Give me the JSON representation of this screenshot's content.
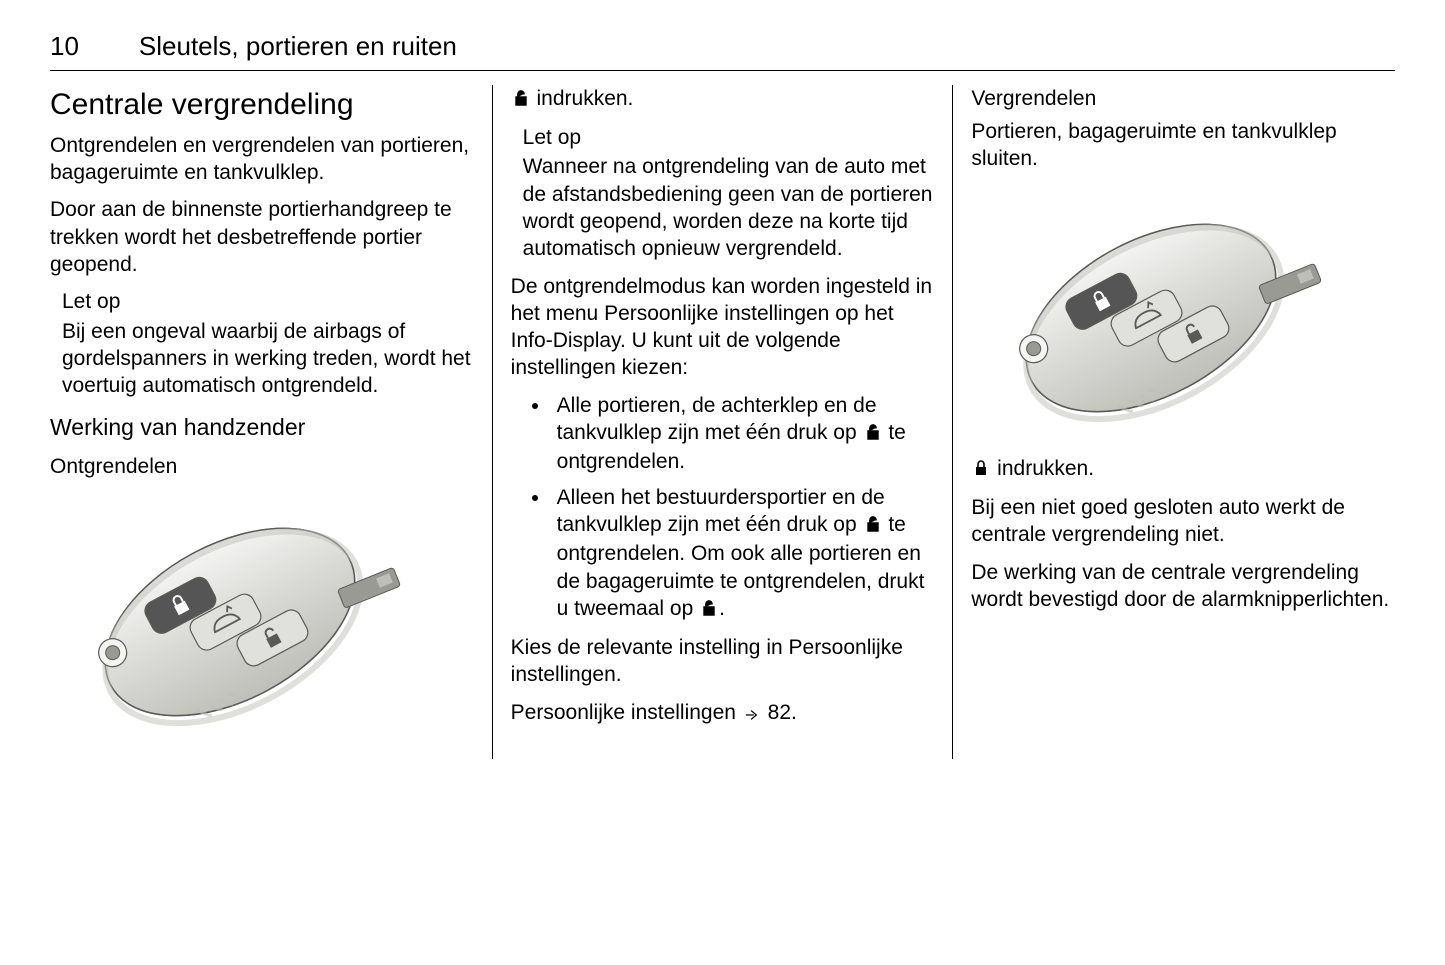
{
  "header": {
    "page_number": "10",
    "chapter_title": "Sleutels, portieren en ruiten"
  },
  "col1": {
    "section_title": "Centrale vergrendeling",
    "p1": "Ontgrendelen en vergrendelen van portieren, bagageruimte en tankvulklep.",
    "p2": "Door aan de binnenste portierhandgreep te trekken wordt het desbetreffende portier geopend.",
    "note1_head": "Let op",
    "note1_body": "Bij een ongeval waarbij de airbags of gordelspanners in werking treden, wordt het voertuig automatisch ontgrendeld.",
    "sub1": "Werking van handzender",
    "subsub1": "Ontgrendelen"
  },
  "col2": {
    "press_unlock": " indrukken.",
    "note1_head": "Let op",
    "note1_body": "Wanneer na ontgrendeling van de auto met de afstandsbediening geen van de portieren wordt geopend, worden deze na korte tijd automatisch opnieuw vergrendeld.",
    "p1": "De ontgrendelmodus kan worden ingesteld in het menu Persoonlijke instellingen op het Info-Display. U kunt uit de volgende instellingen kiezen:",
    "bullet1_a": "Alle portieren, de achterklep en de tankvulklep zijn met één druk op ",
    "bullet1_b": " te ontgrendelen.",
    "bullet2_a": "Alleen het bestuurdersportier en de tankvulklep zijn met één druk op ",
    "bullet2_b": " te ontgrendelen. Om ook alle portieren en de bagageruimte te ontgrendelen, drukt u tweemaal op ",
    "bullet2_c": ".",
    "p2": "Kies de relevante instelling in Persoonlijke instellingen.",
    "p3_a": "Persoonlijke instellingen ",
    "p3_b": " 82."
  },
  "col3": {
    "subsub1": "Vergrendelen",
    "p1": "Portieren, bagageruimte en tankvulklep sluiten.",
    "press_lock": " indrukken.",
    "p2": "Bij een niet goed gesloten auto werkt de centrale vergrendeling niet.",
    "p3": "De werking van de centrale vergrendeling wordt bevestigd door de alarmknipperlichten."
  },
  "keyfob": {
    "active_button_fill": "#555555",
    "body_light": "#f5f5f3",
    "body_mid": "#d8d8d4",
    "body_dark": "#bfbfba",
    "outline": "#5a5a55",
    "button_fill": "#e0e0dc",
    "metal": "#9a9a94"
  }
}
